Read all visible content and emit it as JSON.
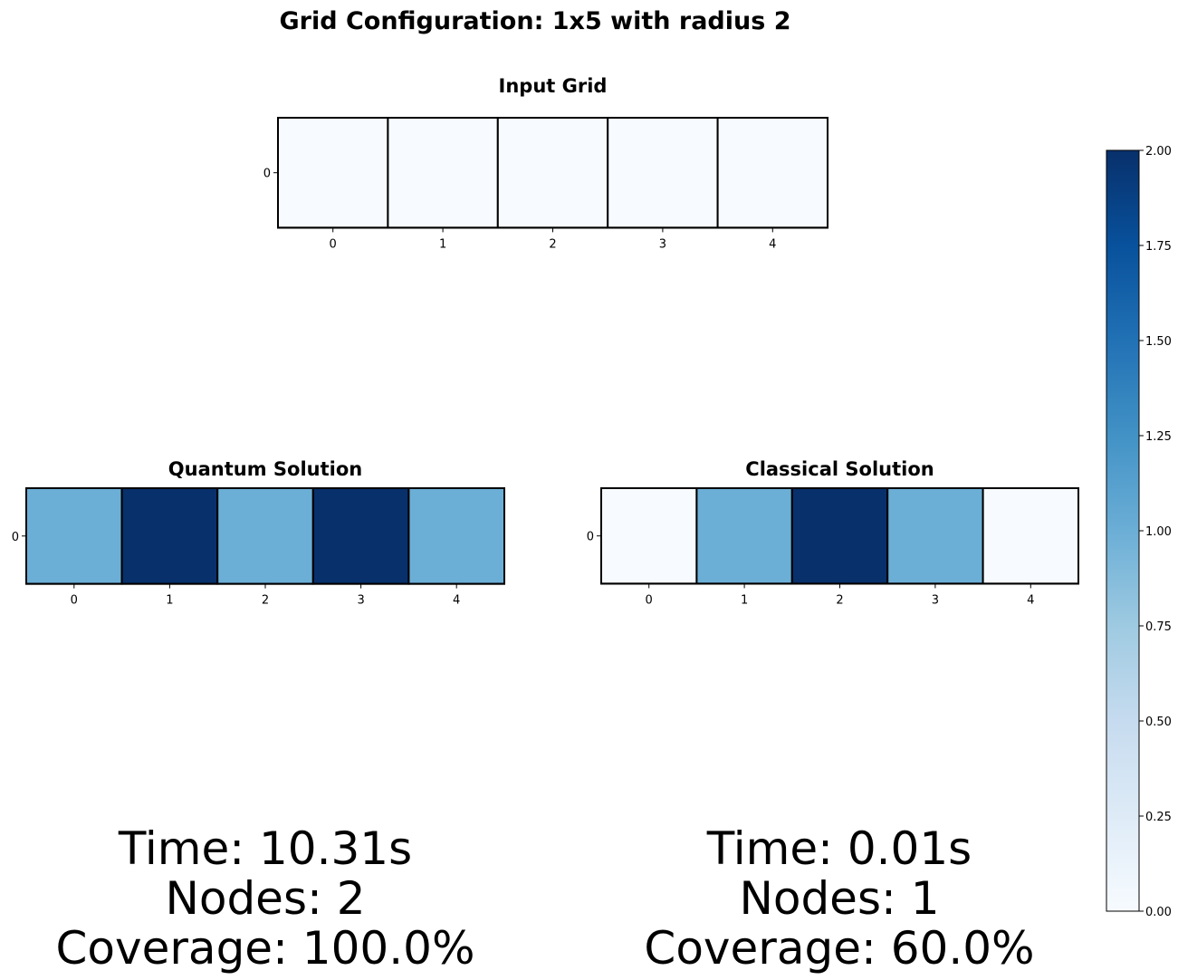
{
  "chart_data": {
    "type": "heatmap",
    "title": "Grid Configuration: 1x5 with radius 2",
    "colormap": "Blues",
    "vmin": 0,
    "vmax": 2,
    "colorbar": {
      "range": [
        0,
        2
      ],
      "ticks": [
        0.0,
        0.25,
        0.5,
        0.75,
        1.0,
        1.25,
        1.5,
        1.75,
        2.0
      ],
      "tick_labels": [
        "0.00",
        "0.25",
        "0.50",
        "0.75",
        "1.00",
        "1.25",
        "1.50",
        "1.75",
        "2.00"
      ]
    },
    "panels": [
      {
        "id": "input",
        "title": "Input Grid",
        "x_ticks": [
          "0",
          "1",
          "2",
          "3",
          "4"
        ],
        "y_ticks": [
          "0"
        ],
        "values": [
          [
            0,
            0,
            0,
            0,
            0
          ]
        ],
        "stats": []
      },
      {
        "id": "quantum",
        "title": "Quantum Solution",
        "x_ticks": [
          "0",
          "1",
          "2",
          "3",
          "4"
        ],
        "y_ticks": [
          "0"
        ],
        "values": [
          [
            1,
            2,
            1,
            2,
            1
          ]
        ],
        "stats": [
          "Time: 10.31s",
          "Nodes: 2",
          "Coverage: 100.0%"
        ]
      },
      {
        "id": "classical",
        "title": "Classical Solution",
        "x_ticks": [
          "0",
          "1",
          "2",
          "3",
          "4"
        ],
        "y_ticks": [
          "0"
        ],
        "values": [
          [
            0,
            1,
            2,
            1,
            0
          ]
        ],
        "stats": [
          "Time: 0.01s",
          "Nodes: 1",
          "Coverage: 60.0%"
        ]
      }
    ]
  }
}
